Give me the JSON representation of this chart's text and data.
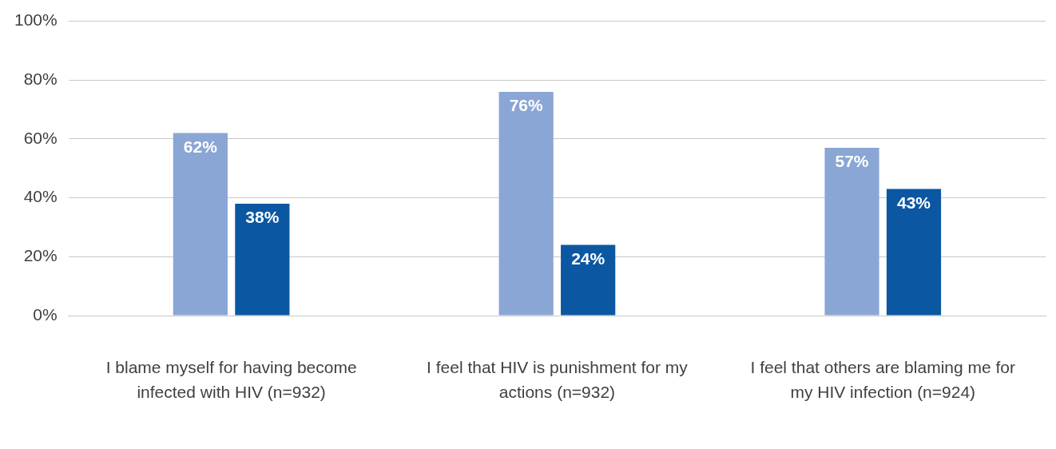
{
  "chart_data": {
    "type": "bar",
    "categories": [
      "I blame myself for having become infected with HIV (n=932)",
      "I feel that HIV is punishment for my actions (n=932)",
      "I feel that others are blaming me for my HIV infection (n=924)"
    ],
    "series": [
      {
        "color": "#8aa6d4",
        "values": [
          62,
          76,
          57
        ],
        "value_labels": [
          "62%",
          "76%",
          "57%"
        ]
      },
      {
        "color": "#0b57a2",
        "values": [
          38,
          24,
          43
        ],
        "value_labels": [
          "38%",
          "24%",
          "43%"
        ]
      }
    ],
    "ylim": [
      0,
      100
    ],
    "yticks": [
      {
        "value": 0,
        "label": "0%"
      },
      {
        "value": 20,
        "label": "20%"
      },
      {
        "value": 40,
        "label": "40%"
      },
      {
        "value": 60,
        "label": "60%"
      },
      {
        "value": 80,
        "label": "80%"
      },
      {
        "value": 100,
        "label": "100%"
      }
    ],
    "grid": "y",
    "legend": false
  }
}
